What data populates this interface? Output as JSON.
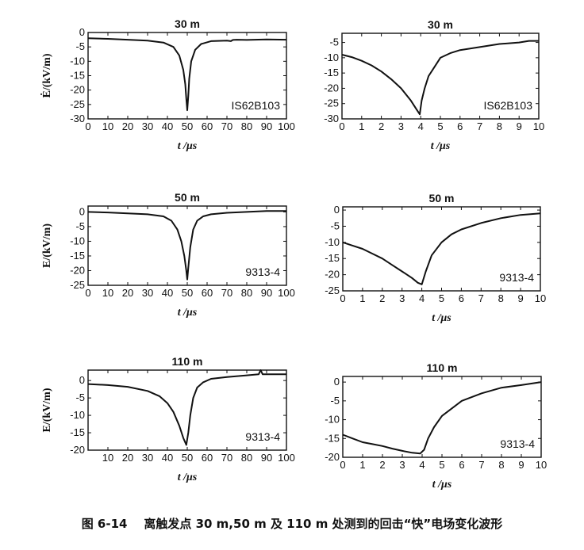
{
  "caption": {
    "figure_number": "图 6-14",
    "text": "离触发点 30 m,50 m 及 110 m 处测到的回击“快”电场变化波形"
  },
  "chart_data": [
    {
      "type": "line",
      "title": "30 m",
      "annotation": "IS62B103",
      "xlabel": "t /μs",
      "ylabel": "Ė/(kV/m)",
      "xlim": [
        0,
        100
      ],
      "ylim": [
        -30,
        0
      ],
      "xticks": [
        0,
        10,
        20,
        30,
        40,
        50,
        60,
        70,
        80,
        90,
        100
      ],
      "yticks": [
        0,
        -5,
        -10,
        -15,
        -20,
        -25,
        -30
      ],
      "x": [
        0,
        10,
        20,
        30,
        38,
        43,
        46,
        48,
        49,
        49.5,
        50,
        50.5,
        51,
        52,
        54,
        57,
        62,
        70,
        72,
        73,
        75,
        80,
        90,
        100
      ],
      "y": [
        -2,
        -2.2,
        -2.5,
        -2.8,
        -3.5,
        -5,
        -8,
        -13,
        -18,
        -23,
        -27,
        -22,
        -16,
        -10,
        -6,
        -4,
        -3,
        -2.8,
        -3,
        -2.6,
        -2.5,
        -2.6,
        -2.4,
        -2.5
      ]
    },
    {
      "type": "line",
      "title": "30 m",
      "annotation": "IS62B103",
      "xlabel": "t /μs",
      "ylabel": "",
      "xlim": [
        0,
        10
      ],
      "ylim": [
        -30,
        -2
      ],
      "xticks": [
        0,
        1,
        2,
        3,
        4,
        5,
        6,
        7,
        8,
        9,
        10
      ],
      "yticks": [
        -5,
        -10,
        -15,
        -20,
        -25,
        -30
      ],
      "x": [
        0,
        0.5,
        1,
        1.5,
        2,
        2.5,
        3,
        3.5,
        3.8,
        3.95,
        4.05,
        4.2,
        4.4,
        4.7,
        5,
        5.5,
        6,
        7,
        8,
        9,
        9.5,
        10
      ],
      "y": [
        -9,
        -9.8,
        -11,
        -12.5,
        -14.5,
        -17,
        -20,
        -24,
        -27,
        -28.5,
        -24,
        -20,
        -16,
        -13,
        -10,
        -8.5,
        -7.5,
        -6.5,
        -5.5,
        -5,
        -4.5,
        -4.5
      ]
    },
    {
      "type": "line",
      "title": "50 m",
      "annotation": "9313-4",
      "xlabel": "t /μs",
      "ylabel": "E/(kV/m)",
      "xlim": [
        0,
        100
      ],
      "ylim": [
        -25,
        2
      ],
      "xticks": [
        0,
        10,
        20,
        30,
        40,
        50,
        60,
        70,
        80,
        90,
        100
      ],
      "yticks": [
        0,
        -5,
        -10,
        -15,
        -20,
        -25
      ],
      "x": [
        0,
        10,
        20,
        30,
        38,
        42,
        45,
        47,
        48.5,
        49.5,
        50,
        50.5,
        51.5,
        53,
        55,
        58,
        62,
        70,
        80,
        90,
        100
      ],
      "y": [
        0,
        -0.2,
        -0.5,
        -0.8,
        -1.5,
        -3,
        -6,
        -10,
        -15,
        -20,
        -23,
        -19,
        -12,
        -6,
        -3,
        -1.5,
        -0.8,
        -0.3,
        0,
        0.3,
        0.3
      ]
    },
    {
      "type": "line",
      "title": "50 m",
      "annotation": "9313-4",
      "xlabel": "t /μs",
      "ylabel": "",
      "xlim": [
        0,
        10
      ],
      "ylim": [
        -25,
        1
      ],
      "xticks": [
        0,
        1,
        2,
        3,
        4,
        5,
        6,
        7,
        8,
        9,
        10
      ],
      "yticks": [
        0,
        -5,
        -10,
        -15,
        -20,
        -25
      ],
      "x": [
        0,
        0.5,
        1,
        1.5,
        2,
        2.5,
        3,
        3.5,
        3.8,
        4,
        4.2,
        4.5,
        5,
        5.5,
        6,
        7,
        8,
        9,
        10
      ],
      "y": [
        -10,
        -11,
        -12,
        -13.5,
        -15,
        -17,
        -19,
        -21,
        -22.5,
        -23,
        -19,
        -14,
        -10,
        -7.5,
        -6,
        -4,
        -2.5,
        -1.5,
        -1
      ]
    },
    {
      "type": "line",
      "title": "110 m",
      "annotation": "9313-4",
      "xlabel": "t /μs",
      "ylabel": "E/(kV/m)",
      "xlim": [
        0,
        100
      ],
      "ylim": [
        -20,
        3
      ],
      "xticks": [
        10,
        20,
        30,
        40,
        50,
        60,
        70,
        80,
        90,
        100
      ],
      "yticks": [
        0,
        -5,
        -10,
        -15,
        -20
      ],
      "x": [
        0,
        10,
        20,
        30,
        36,
        40,
        43,
        46,
        48,
        49.5,
        50.5,
        51.5,
        53,
        55,
        58,
        62,
        70,
        80,
        86,
        87,
        88,
        90,
        100
      ],
      "y": [
        -1,
        -1.3,
        -1.8,
        -3,
        -4.5,
        -6.5,
        -9,
        -13,
        -16.5,
        -18.5,
        -15,
        -10,
        -5,
        -2,
        -0.5,
        0.5,
        1,
        1.5,
        1.8,
        3,
        1.8,
        1.8,
        1.8
      ]
    },
    {
      "type": "line",
      "title": "110 m",
      "annotation": "9313-4",
      "xlabel": "t /μs",
      "ylabel": "",
      "xlim": [
        0,
        10
      ],
      "ylim": [
        -20,
        1.5
      ],
      "xticks": [
        0,
        1,
        2,
        3,
        4,
        5,
        6,
        7,
        8,
        9,
        10
      ],
      "yticks": [
        0,
        -5,
        -10,
        -15,
        -20
      ],
      "x": [
        0,
        0.5,
        1,
        1.5,
        2,
        2.5,
        3,
        3.5,
        3.9,
        4.1,
        4.3,
        4.6,
        5,
        5.5,
        6,
        7,
        8,
        9,
        10
      ],
      "y": [
        -14,
        -15,
        -16,
        -16.5,
        -17,
        -17.7,
        -18.3,
        -18.8,
        -19,
        -18,
        -15,
        -12,
        -9,
        -7,
        -5,
        -3,
        -1.5,
        -0.8,
        0
      ]
    }
  ]
}
